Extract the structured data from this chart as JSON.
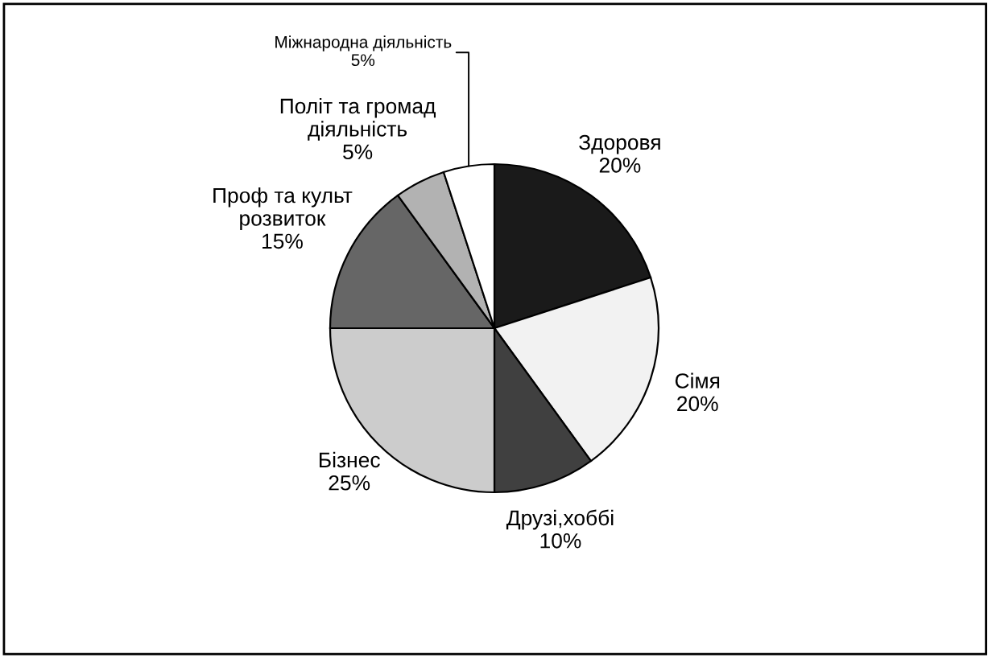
{
  "chart_data": {
    "type": "pie",
    "categories": [
      "Здоровя",
      "Сімя",
      "Друзі,хоббі",
      "Бізнес",
      "Проф та культ\nрозвиток",
      "Політ та громад\nдіяльність",
      "Міжнародна діяльність"
    ],
    "values": [
      20,
      20,
      10,
      25,
      15,
      5,
      5
    ],
    "value_labels": [
      "20%",
      "20%",
      "10%",
      "25%",
      "15%",
      "5%",
      "5%"
    ],
    "colors": [
      "#1a1a1a",
      "#f2f2f2",
      "#404040",
      "#cccccc",
      "#666666",
      "#b2b2b2",
      "#ffffff"
    ],
    "legend": false
  }
}
